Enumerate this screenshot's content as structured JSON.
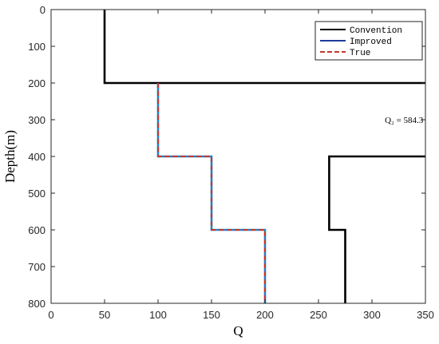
{
  "chart_data": {
    "type": "line",
    "xlabel": "Q",
    "ylabel": "Depth(m)",
    "xlim": [
      0,
      350
    ],
    "ylim": [
      0,
      800
    ],
    "y_reversed": true,
    "x_ticks": [
      0,
      50,
      100,
      150,
      200,
      250,
      300,
      350
    ],
    "y_ticks": [
      0,
      100,
      200,
      300,
      400,
      500,
      600,
      700,
      800
    ],
    "grid": false,
    "legend_position": "top-right",
    "series": [
      {
        "name": "Convention",
        "color": "#000000",
        "style": "solid",
        "points": [
          [
            50,
            0
          ],
          [
            50,
            200
          ],
          [
            350,
            200
          ]
        ]
      },
      {
        "name": "Convention",
        "color": "#000000",
        "style": "solid",
        "points": [
          [
            350,
            400
          ],
          [
            260,
            400
          ],
          [
            260,
            600
          ],
          [
            275,
            600
          ],
          [
            275,
            800
          ]
        ]
      },
      {
        "name": "Improved",
        "color": "#2a7fc6",
        "style": "solid",
        "points": [
          [
            100,
            200
          ],
          [
            100,
            400
          ],
          [
            150,
            400
          ],
          [
            150,
            600
          ],
          [
            200,
            600
          ],
          [
            200,
            800
          ]
        ]
      },
      {
        "name": "True",
        "color": "#c0392b",
        "style": "dashed",
        "points": [
          [
            100,
            200
          ],
          [
            100,
            400
          ],
          [
            150,
            400
          ],
          [
            150,
            600
          ],
          [
            200,
            600
          ],
          [
            200,
            800
          ]
        ]
      }
    ],
    "legend": [
      {
        "label": "Convention",
        "color": "#000000",
        "style": "solid"
      },
      {
        "label": "Improved",
        "color": "#1f3b9a",
        "style": "solid"
      },
      {
        "label": "True",
        "color": "#c0392b",
        "style": "dashed"
      }
    ],
    "annotations": [
      {
        "text": "Q₂ = 584.3",
        "x": 312,
        "y": 300
      }
    ]
  }
}
